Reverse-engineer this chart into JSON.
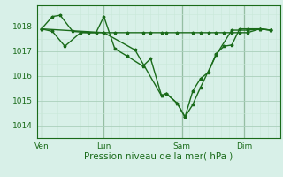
{
  "xlabel": "Pression niveau de la mer( hPa )",
  "bg_color": "#d8f0e8",
  "grid_color_major": "#aacfbb",
  "grid_color_minor": "#c8e8d8",
  "line_color": "#1a6b1a",
  "xtick_labels": [
    "Ven",
    "Lun",
    "Sam",
    "Dim"
  ],
  "xtick_positions": [
    0,
    4,
    9,
    13
  ],
  "ytick_labels": [
    "1014",
    "1015",
    "1016",
    "1017",
    "1018"
  ],
  "ytick_positions": [
    1014,
    1015,
    1016,
    1017,
    1018
  ],
  "ylim": [
    1013.5,
    1018.85
  ],
  "xlim": [
    -0.3,
    15.3
  ],
  "series1_x": [
    0,
    0.7,
    1.2,
    2.0,
    3.0,
    3.5,
    4.0,
    4.7,
    5.5,
    6.5,
    7.0,
    7.7,
    8.0,
    8.7,
    9.2,
    9.7,
    10.2,
    10.7,
    11.2,
    11.7,
    12.2,
    12.7,
    13.2,
    14.0,
    14.7
  ],
  "series1_y": [
    1017.9,
    1018.4,
    1018.45,
    1017.8,
    1017.75,
    1017.75,
    1018.4,
    1017.1,
    1016.8,
    1016.4,
    1016.7,
    1015.2,
    1015.3,
    1014.9,
    1014.35,
    1015.4,
    1015.9,
    1016.15,
    1016.9,
    1017.2,
    1017.25,
    1017.9,
    1017.9,
    1017.9,
    1017.85
  ],
  "series2_x": [
    0,
    0.7,
    1.5,
    2.5,
    3.5,
    4.0,
    4.7,
    5.5,
    6.5,
    7.0,
    7.7,
    8.0,
    8.7,
    9.7,
    10.2,
    10.7,
    11.2,
    11.7,
    12.2,
    12.7,
    13.2,
    14.0,
    14.7
  ],
  "series2_y": [
    1017.9,
    1017.8,
    1017.2,
    1017.75,
    1017.75,
    1017.75,
    1017.75,
    1017.75,
    1017.75,
    1017.75,
    1017.75,
    1017.75,
    1017.75,
    1017.75,
    1017.75,
    1017.75,
    1017.75,
    1017.75,
    1017.75,
    1017.75,
    1017.75,
    1017.9,
    1017.85
  ],
  "series3_x": [
    0,
    4.0,
    6.0,
    7.7,
    8.0,
    8.7,
    9.2,
    9.7,
    10.2,
    11.2,
    12.2,
    13.2,
    14.0,
    14.7
  ],
  "series3_y": [
    1017.9,
    1017.75,
    1017.05,
    1015.2,
    1015.3,
    1014.9,
    1014.35,
    1014.85,
    1015.55,
    1016.85,
    1017.85,
    1017.85,
    1017.9,
    1017.85
  ],
  "marker_size": 2.5,
  "line_width": 1.0
}
